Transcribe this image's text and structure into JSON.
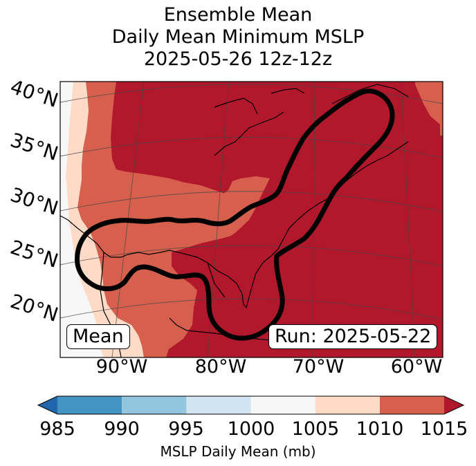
{
  "title": {
    "line1": "Ensemble Mean",
    "line2": "Daily Mean Minimum MSLP",
    "line3": "2025-05-26 12z-12z"
  },
  "map": {
    "lat_labels": [
      "40°N",
      "35°N",
      "30°N",
      "25°N",
      "20°N"
    ],
    "lon_labels": [
      "90°W",
      "80°W",
      "70°W",
      "60°W"
    ],
    "mean_box": "Mean",
    "run_box": "Run: 2025-05-22"
  },
  "colorbar": {
    "ticks": [
      "985",
      "990",
      "995",
      "1000",
      "1005",
      "1010",
      "1015"
    ],
    "label": "MSLP Daily Mean (mb)",
    "colors": {
      "below": "#2166ac",
      "985-990": "#4393c3",
      "990-995": "#92c5de",
      "995-1000": "#d1e5f0",
      "1000-1005": "#f7f7f7",
      "1005-1010": "#fddbc7",
      "1010-1015": "#d6604d",
      "above": "#b2182b"
    }
  }
}
